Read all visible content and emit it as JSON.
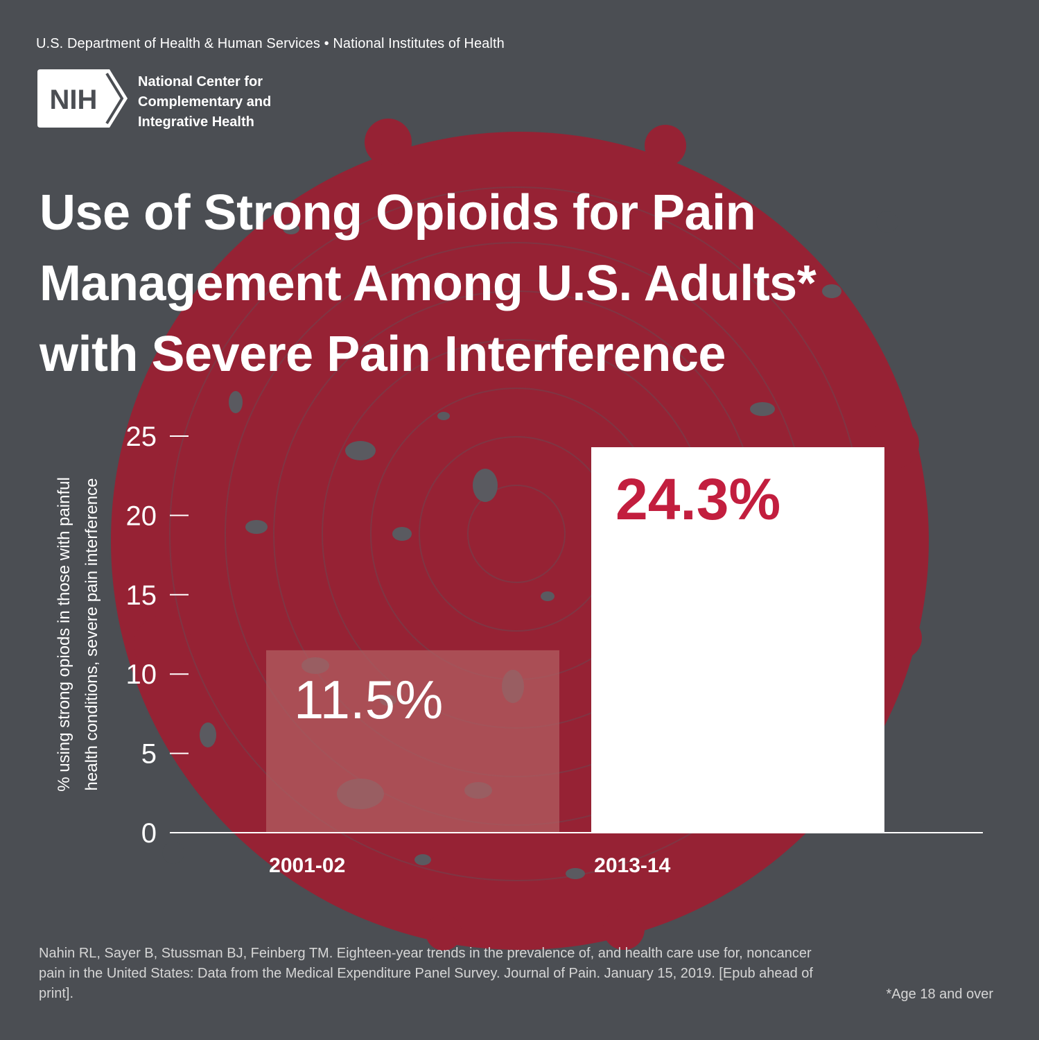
{
  "header": {
    "department_line": "U.S. Department of Health & Human Services • National Institutes of Health",
    "logo_mark": "NIH",
    "logo_text_lines": [
      "National Center for",
      "Complementary and",
      "Integrative Health"
    ]
  },
  "title_lines": [
    "Use of Strong Opioids for Pain",
    "Management Among U.S. Adults*",
    "with Severe Pain Interference"
  ],
  "colors": {
    "background": "#4b4e53",
    "target_red": "#962234",
    "accent_red": "#c21e3e",
    "bar_2013": "#ffffff",
    "bar_2001": "#b26063"
  },
  "chart_data": {
    "type": "bar",
    "categories": [
      "2001-02",
      "2013-14"
    ],
    "values": [
      11.5,
      24.3
    ],
    "data_labels": [
      "11.5%",
      "24.3%"
    ],
    "ylabel_lines": [
      "% using strong opiods in those with painful",
      "health conditions, severe pain interference"
    ],
    "xlabel": "",
    "ylim": [
      0,
      25
    ],
    "yticks": [
      0,
      5,
      10,
      15,
      20,
      25
    ],
    "grid": false,
    "legend": "none"
  },
  "citation": "Nahin RL, Sayer B, Stussman BJ, Feinberg TM. Eighteen-year trends in the prevalence of, and health care use for, noncancer pain in the United States: Data from the Medical Expenditure Panel Survey. Journal of Pain. January 15, 2019. [Epub ahead of print].",
  "footnote": "*Age 18 and over"
}
